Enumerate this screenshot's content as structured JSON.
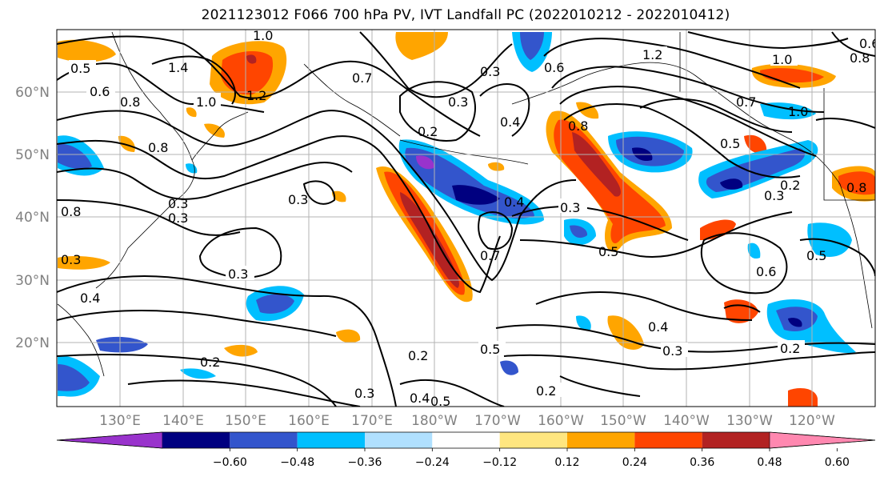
{
  "title": "2021123012 F066 700 hPa PV, IVT Landfall PC (2022010212 - 2022010412)",
  "lat_labels": [
    "60°N",
    "50°N",
    "40°N",
    "30°N",
    "20°N"
  ],
  "lon_labels": [
    "130°E",
    "140°E",
    "150°E",
    "160°E",
    "170°E",
    "180°W",
    "170°W",
    "160°W",
    "150°W",
    "140°W",
    "130°W",
    "120°W"
  ],
  "colorbar": {
    "tick_labels": [
      "−0.60",
      "−0.48",
      "−0.36",
      "−0.24",
      "−0.12",
      "0.12",
      "0.24",
      "0.36",
      "0.48",
      "0.60"
    ],
    "colors": [
      "#9933cc",
      "#000080",
      "#3355cc",
      "#00bfff",
      "#b0e0ff",
      "#ffffff",
      "#ffe680",
      "#ffa500",
      "#ff4500",
      "#b22222",
      "#ff88b0"
    ]
  },
  "contour_labels": [
    "1.0",
    "0.5",
    "0.6",
    "0.8",
    "1.4",
    "1.2",
    "1.0",
    "0.7",
    "0.3",
    "0.3",
    "0.2",
    "0.4",
    "0.6",
    "0.8",
    "1.2",
    "1.0",
    "0.8",
    "0.7",
    "1.0",
    "0.5",
    "0.3",
    "0.2",
    "0.3",
    "0.3",
    "0.7",
    "0.4",
    "0.5",
    "0.6",
    "0.3",
    "0.3",
    "0.4",
    "0.2",
    "0.5",
    "0.2",
    "0.4",
    "0.5",
    "0.3",
    "0.2",
    "0.4",
    "0.3",
    "0.2",
    "0.5",
    "0.6",
    "0.8",
    "0.3",
    "0.8",
    "0.8",
    "0.3"
  ]
}
